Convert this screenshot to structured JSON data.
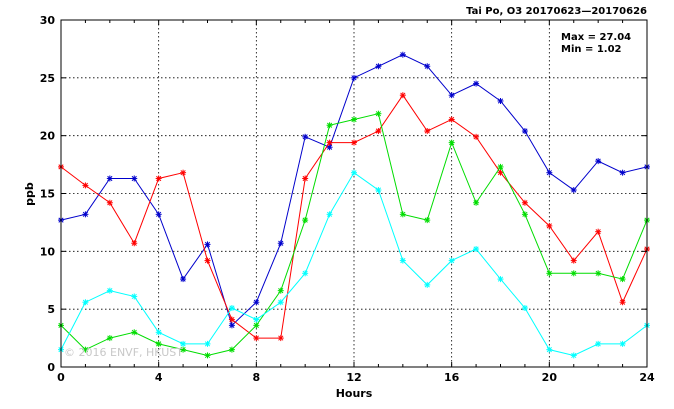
{
  "chart_data": {
    "type": "line",
    "title": "Tai Po, O3 20170623—20170626",
    "xlabel": "Hours",
    "ylabel": "ppb",
    "xlim": [
      0,
      24
    ],
    "ylim": [
      0,
      30
    ],
    "xticks": [
      0,
      4,
      8,
      12,
      16,
      20,
      24
    ],
    "yticks": [
      0,
      5,
      10,
      15,
      20,
      25,
      30
    ],
    "grid": true,
    "x": [
      0,
      1,
      2,
      3,
      4,
      5,
      6,
      7,
      8,
      9,
      10,
      11,
      12,
      13,
      14,
      15,
      16,
      17,
      18,
      19,
      20,
      21,
      22,
      23,
      24
    ],
    "series": [
      {
        "color": "#0000cc",
        "values": [
          12.7,
          13.2,
          16.3,
          16.3,
          13.2,
          7.6,
          10.6,
          3.6,
          5.6,
          10.7,
          19.9,
          19.0,
          25.0,
          26.0,
          27.0,
          26.0,
          23.5,
          24.5,
          23.0,
          20.4,
          16.8,
          15.3,
          17.8,
          16.8,
          17.3
        ]
      },
      {
        "color": "#ff0000",
        "values": [
          17.3,
          15.7,
          14.2,
          10.7,
          16.3,
          16.8,
          9.2,
          4.1,
          2.5,
          2.5,
          16.3,
          19.4,
          19.4,
          20.4,
          23.5,
          20.4,
          21.4,
          19.9,
          16.8,
          14.2,
          12.2,
          9.2,
          11.7,
          5.6,
          10.2
        ]
      },
      {
        "color": "#00dd00",
        "values": [
          3.6,
          1.5,
          2.5,
          3.0,
          2.0,
          1.5,
          1.0,
          1.5,
          3.6,
          6.6,
          12.7,
          20.9,
          21.4,
          21.9,
          13.2,
          12.7,
          19.4,
          14.2,
          17.3,
          13.2,
          8.1,
          8.1,
          8.1,
          7.6,
          12.7
        ]
      },
      {
        "color": "#00ffff",
        "values": [
          1.5,
          5.6,
          6.6,
          6.1,
          3.0,
          2.0,
          2.0,
          5.1,
          4.1,
          5.6,
          8.1,
          13.2,
          16.8,
          15.3,
          9.2,
          7.1,
          9.2,
          10.2,
          7.6,
          5.1,
          1.5,
          1.0,
          2.0,
          2.0,
          3.6
        ]
      }
    ],
    "annotations": {
      "max": "Max = 27.04",
      "min": "Min =  1.02"
    }
  },
  "watermark": "© 2016 ENVF, HKUST"
}
